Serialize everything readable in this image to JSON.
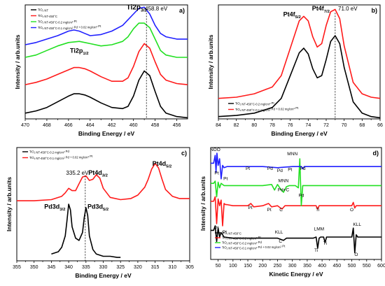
{
  "colors": {
    "black": "#000000",
    "red": "#ff1a1a",
    "green": "#22e022",
    "blue": "#2020ff"
  },
  "chart_data": [
    {
      "panel": "a)",
      "type": "line",
      "xlabel": "Binding Energy / eV",
      "ylabel": "Intensity / arb.units",
      "xlim": [
        470,
        455
      ],
      "xticks": [
        470,
        468,
        466,
        464,
        462,
        460,
        458,
        456
      ],
      "annotations": [
        {
          "text": "Ti2p",
          "sub": "3/2",
          "x": 459.7,
          "y": 0.96
        },
        {
          "text": "458.8 eV",
          "x": 457.9,
          "y": 0.95
        },
        {
          "text": "Ti2p",
          "sub": "1/2",
          "x": 465.0,
          "y": 0.58
        }
      ],
      "legend_placement": "top-left",
      "series": [
        {
          "name": "TiO2 NT",
          "color": "black",
          "x": [
            470,
            469,
            468,
            467,
            466,
            465.5,
            465,
            464.5,
            464,
            463,
            462,
            461,
            460.5,
            460,
            459.5,
            459,
            458.5,
            458,
            457.5,
            457,
            456,
            455
          ],
          "y": [
            0.05,
            0.07,
            0.1,
            0.15,
            0.2,
            0.22,
            0.22,
            0.21,
            0.19,
            0.14,
            0.1,
            0.09,
            0.11,
            0.2,
            0.34,
            0.42,
            0.38,
            0.24,
            0.11,
            0.05,
            0.02,
            0.01
          ]
        },
        {
          "name": "TiO2 NT-450°C",
          "color": "red",
          "x": [
            470,
            469,
            468,
            467,
            466,
            465.5,
            465,
            464.5,
            464,
            463,
            462,
            461,
            460.5,
            460,
            459.5,
            459,
            458.5,
            458,
            457.5,
            457,
            456,
            455
          ],
          "y": [
            0.3,
            0.32,
            0.35,
            0.39,
            0.43,
            0.45,
            0.45,
            0.44,
            0.42,
            0.37,
            0.33,
            0.33,
            0.36,
            0.46,
            0.59,
            0.66,
            0.62,
            0.5,
            0.39,
            0.34,
            0.31,
            0.3
          ]
        },
        {
          "name": "TiO2 NT-450°C-0.2 mg/cm² Pt",
          "color": "green",
          "x": [
            470,
            469,
            468,
            467,
            466,
            465,
            464,
            463,
            462,
            461,
            460.5,
            460,
            459.5,
            459,
            458.5,
            458,
            457.5,
            457,
            456,
            455
          ],
          "y": [
            0.54,
            0.56,
            0.6,
            0.64,
            0.67,
            0.68,
            0.66,
            0.64,
            0.65,
            0.68,
            0.72,
            0.79,
            0.84,
            0.84,
            0.8,
            0.7,
            0.6,
            0.56,
            0.54,
            0.54
          ]
        },
        {
          "name": "TiO2 NT-450°C-0.1 mg/cm² Pd + 0.02 mg/cm² Pt",
          "color": "blue",
          "x": [
            470,
            469,
            468,
            467,
            466,
            465.5,
            465,
            464.5,
            464,
            463,
            462,
            461,
            460.5,
            460,
            459.5,
            459,
            458.5,
            458,
            457.5,
            457,
            456,
            455
          ],
          "y": [
            0.65,
            0.67,
            0.7,
            0.73,
            0.77,
            0.78,
            0.77,
            0.75,
            0.73,
            0.74,
            0.77,
            0.82,
            0.87,
            0.92,
            0.97,
            0.98,
            0.92,
            0.82,
            0.75,
            0.72,
            0.7,
            0.7
          ]
        }
      ]
    },
    {
      "panel": "b)",
      "type": "line",
      "xlabel": "Binding Energy / eV",
      "ylabel": "Intensity / arb.units",
      "xlim": [
        84,
        66
      ],
      "xticks": [
        84,
        82,
        80,
        78,
        76,
        74,
        72,
        70,
        68,
        66
      ],
      "annotations": [
        {
          "text": "Pt4f",
          "sub": "5/2",
          "x": 75.8,
          "y": 0.9
        },
        {
          "text": "Pt4f",
          "sub": "7/2",
          "x": 72.6,
          "y": 0.95
        },
        {
          "text": "71.0 eV",
          "x": 69.6,
          "y": 0.95
        }
      ],
      "legend_placement": "bottom-left",
      "series": [
        {
          "name": "TiO2 NT-450°C-0.2 mg/cm² Pt",
          "color": "black",
          "x": [
            84,
            82,
            80,
            78,
            77,
            76,
            75,
            74.5,
            74,
            73.5,
            73,
            72.5,
            72,
            71.5,
            71,
            70.5,
            70,
            69,
            68,
            67,
            66
          ],
          "y": [
            0.02,
            0.03,
            0.05,
            0.1,
            0.18,
            0.38,
            0.58,
            0.62,
            0.57,
            0.44,
            0.36,
            0.38,
            0.52,
            0.68,
            0.73,
            0.66,
            0.45,
            0.15,
            0.05,
            0.02,
            0.01
          ]
        },
        {
          "name": "TiO2 NT-450°C-0.1 mg/cm² Pd + 0.02 mg/cm² Pt",
          "color": "red",
          "x": [
            84,
            82,
            80,
            78,
            77,
            76,
            75,
            74.5,
            74,
            73.5,
            73,
            72.5,
            72,
            71.5,
            71,
            70.5,
            70,
            69,
            68,
            67,
            66
          ],
          "y": [
            0.18,
            0.19,
            0.22,
            0.28,
            0.38,
            0.62,
            0.86,
            0.9,
            0.86,
            0.72,
            0.63,
            0.66,
            0.82,
            0.94,
            0.96,
            0.88,
            0.64,
            0.32,
            0.22,
            0.19,
            0.18
          ]
        }
      ]
    },
    {
      "panel": "c)",
      "type": "line",
      "xlabel": "Binding Energy / eV",
      "ylabel": "Intensity / arb.units",
      "xlim": [
        355,
        305
      ],
      "xticks": [
        355,
        350,
        345,
        340,
        335,
        330,
        325,
        320,
        315,
        310,
        305
      ],
      "annotations": [
        {
          "text": "335.2 eV",
          "x": 337.5,
          "y": 0.76
        },
        {
          "text": "Pt4d",
          "sub": "3/2",
          "x": 331.5,
          "y": 0.76
        },
        {
          "text": "Pt4d",
          "sub": "5/2",
          "x": 313.0,
          "y": 0.84
        },
        {
          "text": "Pd3d",
          "sub": "3/2",
          "x": 344.0,
          "y": 0.46
        },
        {
          "text": "Pd3d",
          "sub": "5/2",
          "x": 331.5,
          "y": 0.46
        }
      ],
      "legend_placement": "top-left",
      "series": [
        {
          "name": "TiO2 NT-450°C-0.2 mg/cm² Pd",
          "color": "black",
          "x": [
            345,
            343,
            342,
            341,
            340.5,
            340,
            339.5,
            339,
            338,
            337,
            336,
            335.5,
            335,
            334.5,
            334,
            333,
            332,
            330,
            328,
            326,
            325
          ],
          "y": [
            0.06,
            0.08,
            0.12,
            0.22,
            0.35,
            0.5,
            0.45,
            0.3,
            0.2,
            0.18,
            0.25,
            0.38,
            0.47,
            0.4,
            0.22,
            0.1,
            0.06,
            0.04,
            0.04,
            0.03,
            0.03
          ]
        },
        {
          "name": "TiO2 NT-450°C-0.1 mg/cm² Pd + 0.02 mg/cm² Pt",
          "color": "red",
          "x": [
            355,
            350,
            345,
            342,
            341,
            340,
            339,
            338,
            337,
            336,
            335,
            334,
            333,
            332,
            331,
            330,
            328,
            325,
            322,
            320,
            318,
            317,
            316,
            315,
            314,
            313,
            312,
            310,
            308,
            305
          ],
          "y": [
            0.53,
            0.53,
            0.54,
            0.57,
            0.6,
            0.64,
            0.62,
            0.62,
            0.68,
            0.74,
            0.75,
            0.71,
            0.72,
            0.76,
            0.73,
            0.64,
            0.56,
            0.54,
            0.55,
            0.58,
            0.65,
            0.72,
            0.81,
            0.86,
            0.82,
            0.72,
            0.63,
            0.57,
            0.55,
            0.55
          ]
        }
      ]
    },
    {
      "panel": "d)",
      "type": "line",
      "xlabel": "Kinetic Energy / eV",
      "ylabel": "Intensity / arb.units",
      "xlim": [
        25,
        600
      ],
      "xticks": [
        50,
        100,
        150,
        200,
        250,
        300,
        350,
        400,
        450,
        500,
        550,
        600
      ],
      "annotations": [
        {
          "text": "NOO",
          "x": 40,
          "y": 0.97
        },
        {
          "text": "MNN",
          "x": 300,
          "y": 0.93
        },
        {
          "text": "Pt",
          "x": 150,
          "y": 0.8
        },
        {
          "text": "Pd",
          "x": 225,
          "y": 0.8
        },
        {
          "text": "Pd",
          "x": 258,
          "y": 0.78
        },
        {
          "text": "Pt",
          "x": 292,
          "y": 0.79
        },
        {
          "text": "Pd",
          "x": 335,
          "y": 0.8
        },
        {
          "text": "Pt",
          "x": 45,
          "y": 0.76
        },
        {
          "text": "Pt",
          "x": 75,
          "y": 0.71
        },
        {
          "text": "MNN",
          "x": 270,
          "y": 0.69
        },
        {
          "text": "Pd+C",
          "x": 270,
          "y": 0.61
        },
        {
          "text": "Pd",
          "x": 330,
          "y": 0.56
        },
        {
          "text": "Pt",
          "x": 158,
          "y": 0.45
        },
        {
          "text": "Pt",
          "x": 222,
          "y": 0.43
        },
        {
          "text": "C",
          "x": 262,
          "y": 0.43
        },
        {
          "text": "Ti",
          "x": 385,
          "y": 0.43
        },
        {
          "text": "O",
          "x": 500,
          "y": 0.43
        },
        {
          "text": "Pt",
          "x": 45,
          "y": 0.27
        },
        {
          "text": "Pt",
          "x": 72,
          "y": 0.23
        },
        {
          "text": "KLL",
          "x": 255,
          "y": 0.23
        },
        {
          "text": "C",
          "x": 260,
          "y": 0.15
        },
        {
          "text": "LMM",
          "x": 390,
          "y": 0.26
        },
        {
          "text": "KLL",
          "x": 518,
          "y": 0.3
        },
        {
          "text": "Ti",
          "x": 380,
          "y": 0.07
        },
        {
          "text": "Ti",
          "x": 410,
          "y": 0.13
        },
        {
          "text": "O",
          "x": 515,
          "y": 0.03
        }
      ],
      "legend_placement": "bottom-left",
      "series": [
        {
          "name": "TiO2 NT-450°C",
          "color": "black",
          "x": [
            25,
            35,
            40,
            45,
            50,
            55,
            60,
            70,
            100,
            150,
            200,
            250,
            270,
            280,
            300,
            350,
            370,
            380,
            385,
            390,
            395,
            405,
            410,
            415,
            420,
            450,
            480,
            500,
            505,
            510,
            515,
            520,
            530,
            560,
            600
          ],
          "y": [
            0.26,
            0.26,
            0.3,
            0.16,
            0.28,
            0.2,
            0.24,
            0.2,
            0.19,
            0.19,
            0.19,
            0.19,
            0.17,
            0.19,
            0.19,
            0.19,
            0.19,
            0.2,
            0.1,
            0.19,
            0.2,
            0.2,
            0.15,
            0.2,
            0.2,
            0.2,
            0.2,
            0.2,
            0.28,
            0.06,
            0.22,
            0.2,
            0.2,
            0.2,
            0.2
          ]
        },
        {
          "name": "TiO2 NT-450°C-0.2 mg/cm² Pt",
          "color": "red",
          "x": [
            25,
            35,
            40,
            45,
            50,
            55,
            60,
            65,
            70,
            75,
            80,
            100,
            150,
            160,
            170,
            200,
            220,
            230,
            250,
            265,
            275,
            300,
            350,
            380,
            385,
            390,
            400,
            450,
            500,
            505,
            510,
            515,
            520,
            550,
            600
          ],
          "y": [
            0.52,
            0.52,
            0.56,
            0.32,
            0.54,
            0.48,
            0.53,
            0.3,
            0.5,
            0.49,
            0.49,
            0.48,
            0.48,
            0.5,
            0.47,
            0.48,
            0.5,
            0.47,
            0.48,
            0.45,
            0.48,
            0.48,
            0.48,
            0.48,
            0.45,
            0.48,
            0.48,
            0.48,
            0.48,
            0.51,
            0.46,
            0.48,
            0.48,
            0.48,
            0.48
          ]
        },
        {
          "name": "TiO2 NT-450°C-0.2 mg/cm² Pd",
          "color": "green",
          "x": [
            25,
            35,
            40,
            45,
            50,
            55,
            60,
            70,
            100,
            150,
            200,
            230,
            240,
            250,
            260,
            270,
            280,
            290,
            300,
            310,
            320,
            325,
            330,
            335,
            340,
            350,
            400,
            450,
            500,
            550,
            600
          ],
          "y": [
            0.68,
            0.68,
            0.7,
            0.56,
            0.69,
            0.64,
            0.68,
            0.66,
            0.66,
            0.66,
            0.66,
            0.67,
            0.62,
            0.67,
            0.63,
            0.6,
            0.65,
            0.66,
            0.66,
            0.66,
            0.64,
            0.9,
            0.48,
            0.66,
            0.66,
            0.66,
            0.66,
            0.66,
            0.66,
            0.66,
            0.66
          ]
        },
        {
          "name": "TiO2 NT-450°C-0.1 mg/cm² Pd + 0.02 mg/cm² Pt",
          "color": "blue",
          "x": [
            25,
            35,
            40,
            43,
            46,
            50,
            55,
            60,
            65,
            70,
            80,
            100,
            150,
            200,
            250,
            300,
            330,
            335,
            340,
            350,
            400,
            450,
            500,
            550,
            600
          ],
          "y": [
            0.86,
            0.86,
            0.93,
            0.78,
            0.95,
            0.84,
            0.9,
            0.72,
            0.84,
            0.82,
            0.83,
            0.83,
            0.83,
            0.83,
            0.82,
            0.83,
            0.83,
            0.81,
            0.83,
            0.83,
            0.83,
            0.83,
            0.83,
            0.83,
            0.83
          ]
        }
      ]
    }
  ]
}
